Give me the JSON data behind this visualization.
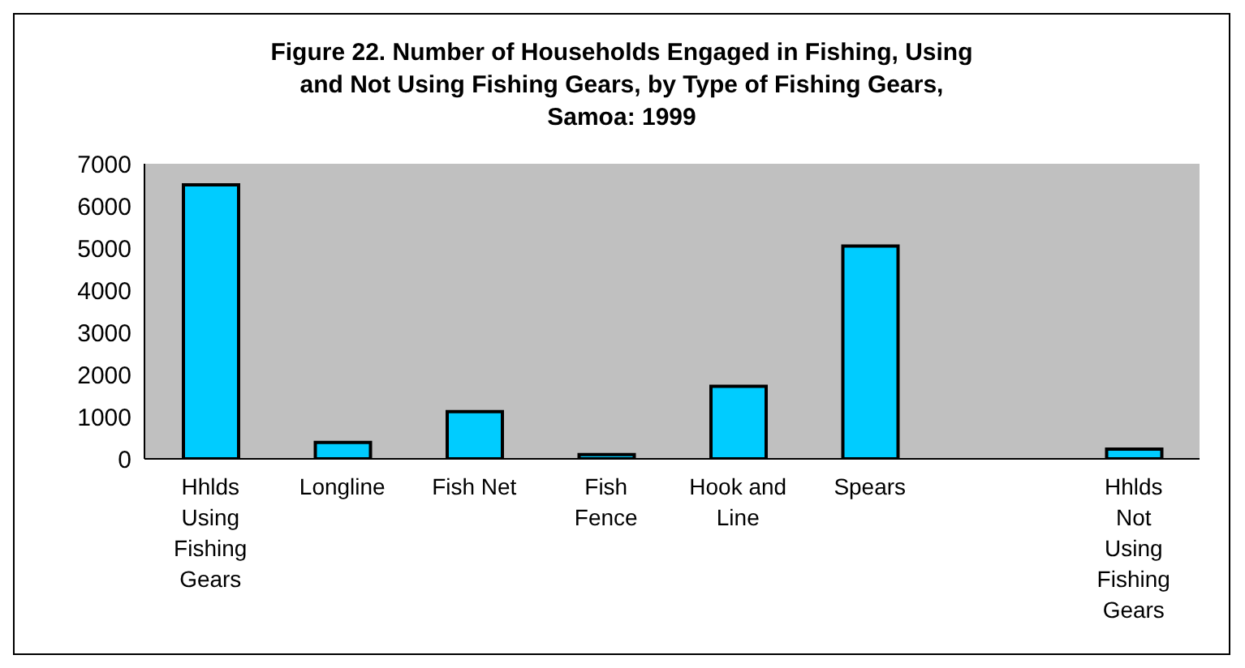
{
  "chart_data": {
    "type": "bar",
    "title": "Figure 22. Number of Households Engaged in Fishing, Using and Not Using Fishing Gears, by Type of Fishing Gears, Samoa: 1999",
    "categories": [
      "Hhlds Using Fishing Gears",
      "Longline",
      "Fish Net",
      "Fish Fence",
      "Hook and Line",
      "Spears",
      null,
      "Hhlds Not Using Fishing Gears"
    ],
    "values": [
      6500,
      390,
      1120,
      100,
      1720,
      5050,
      null,
      230
    ],
    "color": "#00ccff",
    "ylim": [
      0,
      7000
    ],
    "yticks": [
      0,
      1000,
      2000,
      3000,
      4000,
      5000,
      6000,
      7000
    ],
    "grid": false,
    "legend": false
  }
}
